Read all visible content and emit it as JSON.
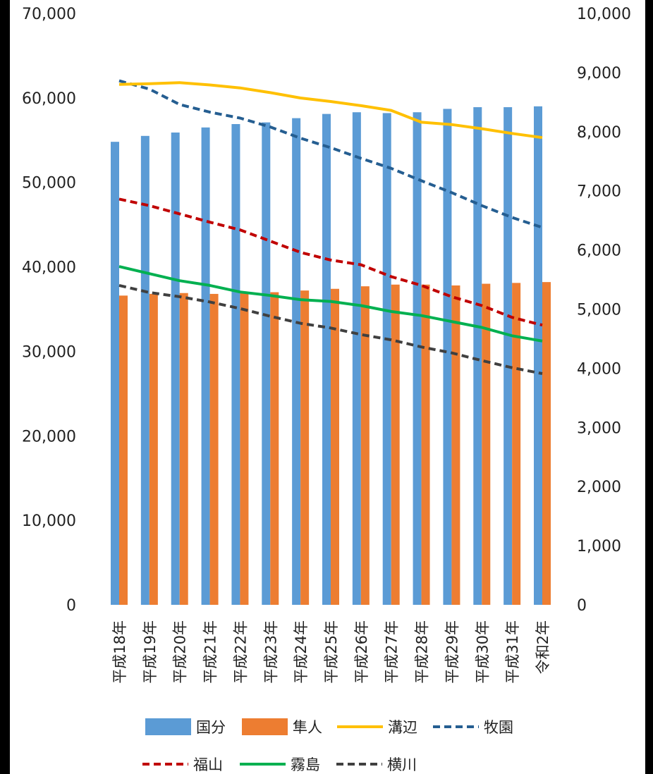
{
  "chart_data": {
    "type": "bar",
    "categories": [
      "平成18年",
      "平成19年",
      "平成20年",
      "平成21年",
      "平成22年",
      "平成23年",
      "平成24年",
      "平成25年",
      "平成26年",
      "平成27年",
      "平成28年",
      "平成29年",
      "平成30年",
      "平成31年",
      "令和2年"
    ],
    "y_left_ticks": [
      "0",
      "10,000",
      "20,000",
      "30,000",
      "40,000",
      "50,000",
      "60,000",
      "70,000"
    ],
    "y_right_ticks": [
      "0",
      "1,000",
      "2,000",
      "3,000",
      "4,000",
      "5,000",
      "6,000",
      "7,000",
      "8,000",
      "9,000",
      "10,000"
    ],
    "ylim_left": [
      0,
      70000
    ],
    "ylim_right": [
      0,
      10000
    ],
    "legend_position": "bottom",
    "series": [
      {
        "name": "国分",
        "kind": "bar",
        "axis": "left",
        "color": "#5b9bd5",
        "values": [
          54800,
          55500,
          55900,
          56500,
          56900,
          57100,
          57600,
          58100,
          58300,
          58200,
          58300,
          58700,
          58900,
          58900,
          59000
        ]
      },
      {
        "name": "隼人",
        "kind": "bar",
        "axis": "left",
        "color": "#ed7d31",
        "values": [
          36600,
          36800,
          36900,
          36800,
          36900,
          37000,
          37200,
          37400,
          37700,
          37900,
          37900,
          37800,
          38000,
          38100,
          38200
        ]
      },
      {
        "name": "溝辺",
        "kind": "line",
        "axis": "right",
        "dash": "solid",
        "color": "#ffc000",
        "values": [
          8800,
          8810,
          8830,
          8790,
          8740,
          8660,
          8570,
          8510,
          8440,
          8360,
          8160,
          8120,
          8050,
          7970,
          7900
        ]
      },
      {
        "name": "牧園",
        "kind": "line",
        "axis": "right",
        "dash": "dashed",
        "color": "#255e91",
        "values": [
          8860,
          8720,
          8460,
          8330,
          8230,
          8080,
          7890,
          7730,
          7550,
          7380,
          7170,
          6970,
          6750,
          6550,
          6380
        ]
      },
      {
        "name": "福山",
        "kind": "line",
        "axis": "right",
        "dash": "dashed",
        "color": "#c00000",
        "values": [
          6860,
          6750,
          6610,
          6470,
          6340,
          6150,
          5960,
          5830,
          5750,
          5550,
          5400,
          5210,
          5060,
          4860,
          4730
        ]
      },
      {
        "name": "霧島",
        "kind": "line",
        "axis": "right",
        "dash": "solid",
        "color": "#00b050",
        "values": [
          5720,
          5600,
          5480,
          5400,
          5290,
          5230,
          5160,
          5130,
          5060,
          4960,
          4890,
          4790,
          4690,
          4550,
          4460
        ]
      },
      {
        "name": "横川",
        "kind": "line",
        "axis": "right",
        "dash": "dashed",
        "color": "#404040",
        "values": [
          5400,
          5280,
          5210,
          5120,
          5010,
          4880,
          4760,
          4680,
          4570,
          4480,
          4360,
          4260,
          4130,
          4010,
          3910
        ]
      }
    ]
  }
}
